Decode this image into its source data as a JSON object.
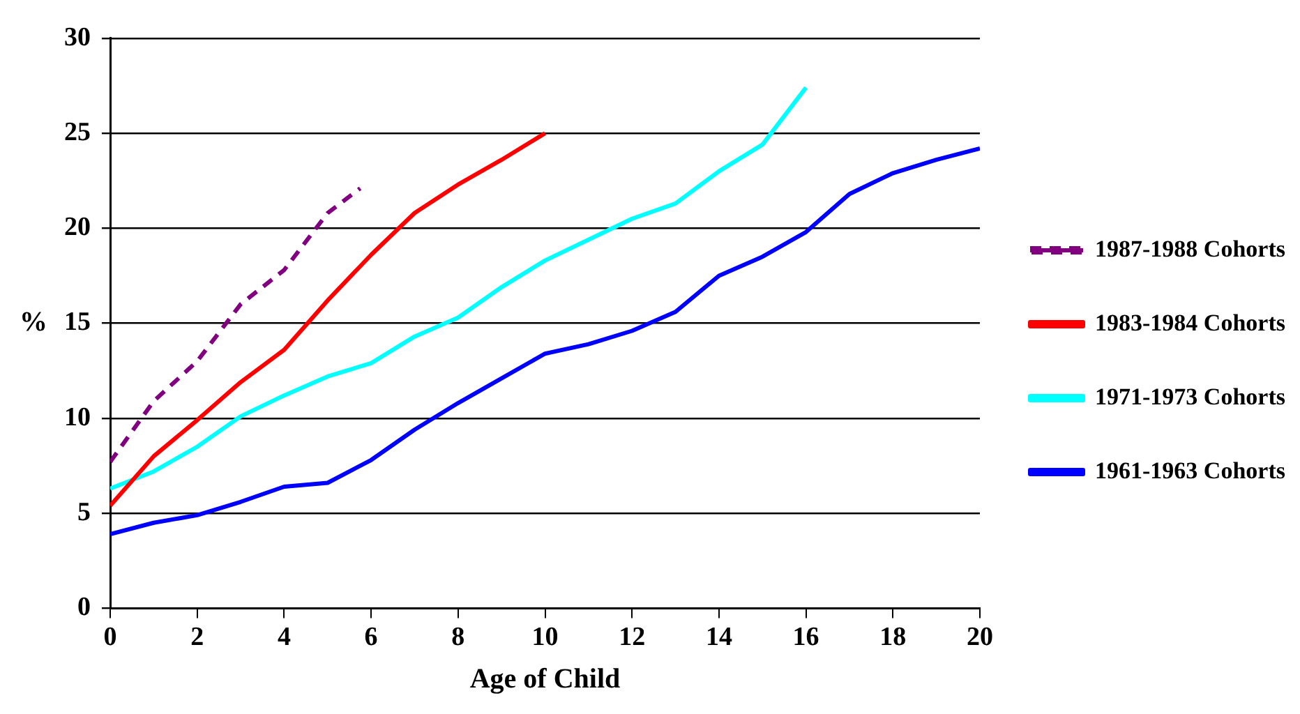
{
  "chart_data": {
    "type": "line",
    "xlabel": "Age of Child",
    "ylabel": "%",
    "xlim": [
      0,
      20
    ],
    "xticks": [
      0,
      2,
      4,
      6,
      8,
      10,
      12,
      14,
      16,
      18,
      20
    ],
    "ylim": [
      0,
      30
    ],
    "yticks": [
      0,
      5,
      10,
      15,
      20,
      25,
      30
    ],
    "grid": "y",
    "legend": "right",
    "marker": "none",
    "series": [
      {
        "name": "1987-1988 Cohorts",
        "color": "#800080",
        "line_style": "dashed",
        "x": [
          0,
          1,
          2,
          3,
          4,
          5,
          5.75
        ],
        "values": [
          7.7,
          10.9,
          13.0,
          16.0,
          17.8,
          20.8,
          22.1
        ]
      },
      {
        "name": "1983-1984 Cohorts",
        "color": "#ff0000",
        "line_style": "solid",
        "x": [
          0,
          1,
          2,
          3,
          4,
          5,
          6,
          7,
          8,
          9,
          10
        ],
        "values": [
          5.4,
          8.0,
          9.9,
          11.9,
          13.6,
          16.2,
          18.6,
          20.8,
          22.3,
          23.6,
          25.0
        ]
      },
      {
        "name": "1971-1973 Cohorts",
        "color": "#00ffff",
        "line_style": "solid",
        "x": [
          0,
          1,
          2,
          3,
          4,
          5,
          6,
          7,
          8,
          9,
          10,
          11,
          12,
          13,
          14,
          15,
          16
        ],
        "values": [
          6.3,
          7.2,
          8.5,
          10.1,
          11.2,
          12.2,
          12.9,
          14.3,
          15.3,
          16.9,
          18.3,
          19.4,
          20.5,
          21.3,
          23.0,
          24.4,
          27.4
        ]
      },
      {
        "name": "1961-1963 Cohorts",
        "color": "#0000ff",
        "line_style": "solid",
        "x": [
          0,
          1,
          2,
          3,
          4,
          5,
          6,
          7,
          8,
          9,
          10,
          11,
          12,
          13,
          14,
          15,
          16,
          17,
          18,
          19,
          20
        ],
        "values": [
          3.9,
          4.5,
          4.9,
          5.6,
          6.4,
          6.6,
          7.8,
          9.4,
          10.8,
          12.1,
          13.4,
          13.9,
          14.6,
          15.6,
          17.5,
          18.5,
          19.8,
          21.8,
          22.9,
          23.6,
          24.2
        ]
      }
    ]
  }
}
